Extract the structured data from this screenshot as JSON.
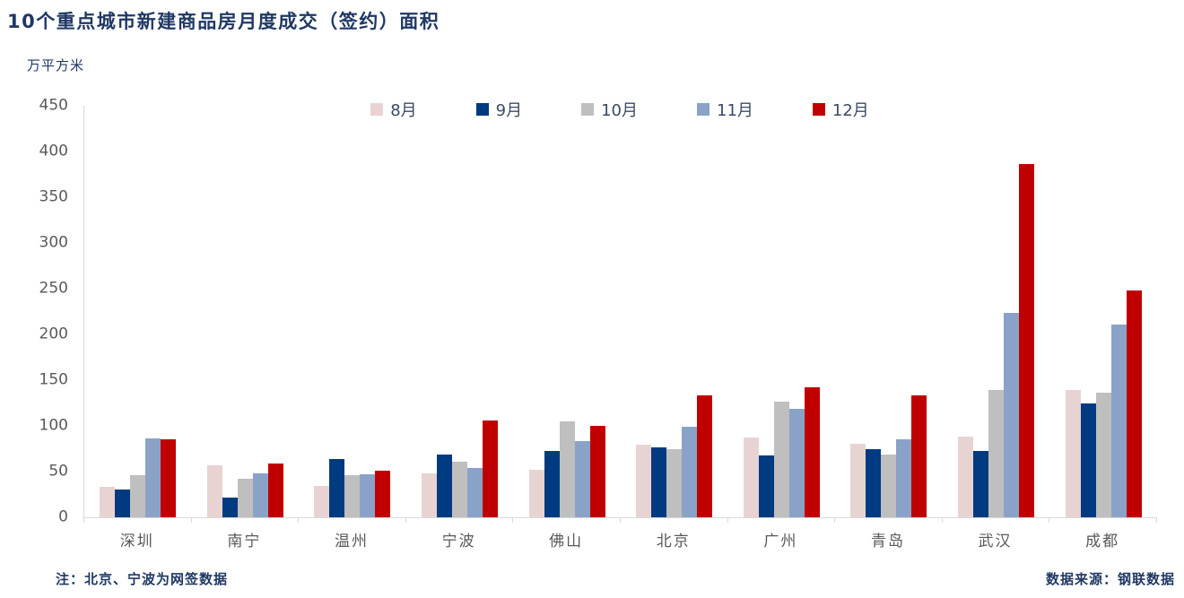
{
  "header": {
    "title": "10个重点城市新建商品房月度成交（签约）面积",
    "unit_label": "万平方米"
  },
  "footer": {
    "note_left": "注：北京、宁波为网签数据",
    "note_right": "数据来源：钢联数据"
  },
  "colors": {
    "title_text": "#1f3864",
    "note_text": "#1f3864",
    "axis_text": "#595959",
    "legend_text": "#3b4a63",
    "axis_line": "#d9d9d9"
  },
  "chart_data": {
    "type": "bar",
    "title": "10个重点城市新建商品房月度成交（签约）面积",
    "xlabel": "",
    "ylabel": "万平方米",
    "ylim": [
      0,
      450
    ],
    "ytick_step": 50,
    "grid": false,
    "legend_position": "top-center",
    "categories": [
      "深圳",
      "南宁",
      "温州",
      "宁波",
      "佛山",
      "北京",
      "广州",
      "青岛",
      "武汉",
      "成都"
    ],
    "series": [
      {
        "name": "8月",
        "color": "#e8d3d3",
        "values": [
          33,
          57,
          34,
          48,
          52,
          79,
          87,
          80,
          88,
          139
        ]
      },
      {
        "name": "9月",
        "color": "#003a80",
        "values": [
          30,
          22,
          64,
          69,
          73,
          76,
          68,
          75,
          73,
          125
        ]
      },
      {
        "name": "10月",
        "color": "#bfbfbf",
        "values": [
          46,
          42,
          46,
          61,
          105,
          75,
          126,
          69,
          139,
          136
        ]
      },
      {
        "name": "11月",
        "color": "#8aa2c8",
        "values": [
          86,
          48,
          47,
          54,
          83,
          99,
          119,
          85,
          224,
          211
        ]
      },
      {
        "name": "12月",
        "color": "#c00000",
        "values": [
          85,
          59,
          51,
          106,
          100,
          133,
          142,
          133,
          386,
          248
        ]
      }
    ]
  }
}
